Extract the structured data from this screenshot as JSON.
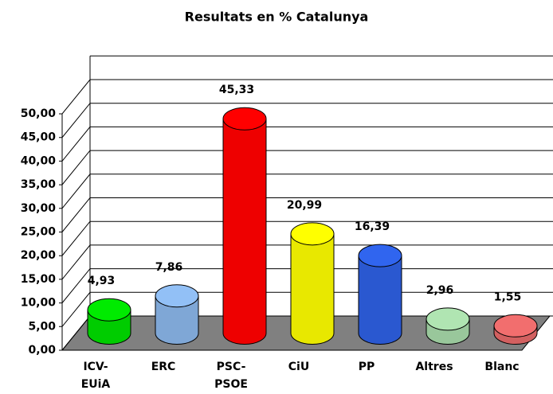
{
  "chart_data": {
    "type": "bar",
    "title": "Resultats en % Catalunya",
    "categories": [
      "ICV-EUiA",
      "ERC",
      "PSC-PSOE",
      "CiU",
      "PP",
      "Altres",
      "Blanc"
    ],
    "values": [
      4.93,
      7.86,
      45.33,
      20.99,
      16.39,
      2.96,
      1.55
    ],
    "value_labels": [
      "4,93",
      "7,86",
      "45,33",
      "20,99",
      "16,39",
      "2,96",
      "1,55"
    ],
    "colors": [
      "#00cc00",
      "#7fa7d6",
      "#ee0000",
      "#e8e800",
      "#2a58d0",
      "#99c79b",
      "#d26060"
    ],
    "ylim": [
      0,
      55
    ],
    "yticks": [
      {
        "value": 0,
        "label": "0,00"
      },
      {
        "value": 5,
        "label": "5,00"
      },
      {
        "value": 10,
        "label": "10,00"
      },
      {
        "value": 15,
        "label": "15,00"
      },
      {
        "value": 20,
        "label": "20,00"
      },
      {
        "value": 25,
        "label": "25,00"
      },
      {
        "value": 30,
        "label": "30,00"
      },
      {
        "value": 35,
        "label": "35,00"
      },
      {
        "value": 40,
        "label": "40,00"
      },
      {
        "value": 45,
        "label": "45,00"
      },
      {
        "value": 50,
        "label": "50,00"
      }
    ],
    "grid": true
  }
}
